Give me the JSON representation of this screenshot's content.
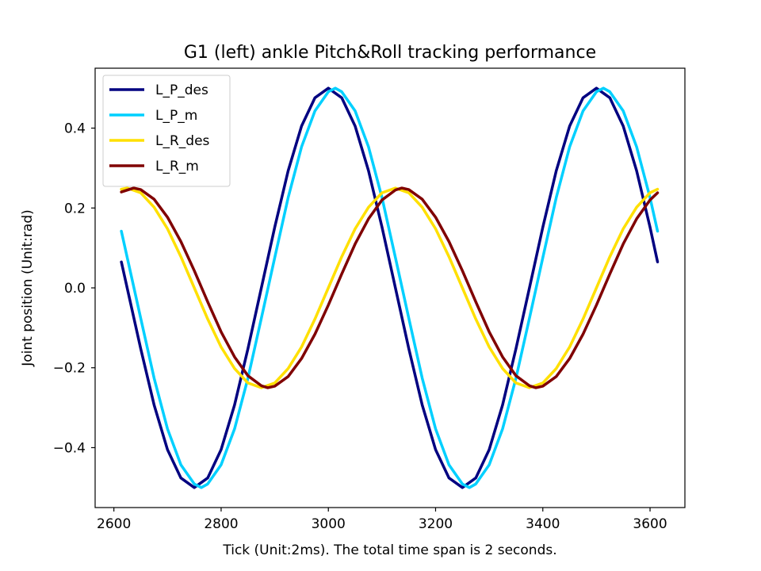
{
  "chart_data": {
    "type": "line",
    "title": "G1 (left) ankle Pitch&Roll tracking performance",
    "xlabel": "Tick (Unit:2ms). The total time span is 2 seconds.",
    "ylabel": "Joint position (Unit:rad)",
    "xlim": [
      2565,
      3665
    ],
    "ylim": [
      -0.55,
      0.55
    ],
    "xticks": [
      2600,
      2800,
      3000,
      3200,
      3400,
      3600
    ],
    "yticks": [
      0.4,
      0.2,
      0.0,
      -0.2,
      -0.4
    ],
    "xtick_labels": [
      "2600",
      "2800",
      "3000",
      "3200",
      "3400",
      "3600"
    ],
    "ytick_labels": [
      "0.4",
      "0.2",
      "0.0",
      "−0.2",
      "−0.4"
    ],
    "grid": false,
    "legend_position": "top-left",
    "series": [
      {
        "name": "L_P_des",
        "color": "#000080",
        "x": [
          2614,
          2650,
          2675,
          2700,
          2725,
          2750,
          2775,
          2800,
          2825,
          2850,
          2875,
          2900,
          2925,
          2950,
          2975,
          3000,
          3025,
          3050,
          3075,
          3100,
          3125,
          3150,
          3175,
          3200,
          3225,
          3250,
          3275,
          3300,
          3325,
          3350,
          3375,
          3400,
          3425,
          3450,
          3475,
          3500,
          3525,
          3550,
          3575,
          3600,
          3614
        ],
        "y": [
          0.065,
          -0.152,
          -0.293,
          -0.405,
          -0.476,
          -0.5,
          -0.476,
          -0.405,
          -0.293,
          -0.152,
          0.0,
          0.152,
          0.293,
          0.405,
          0.476,
          0.5,
          0.476,
          0.405,
          0.293,
          0.152,
          0.0,
          -0.152,
          -0.293,
          -0.405,
          -0.476,
          -0.5,
          -0.476,
          -0.405,
          -0.293,
          -0.152,
          0.0,
          0.152,
          0.293,
          0.405,
          0.476,
          0.5,
          0.476,
          0.405,
          0.293,
          0.152,
          0.065
        ]
      },
      {
        "name": "L_P_m",
        "color": "#00d0ff",
        "x": [
          2614,
          2650,
          2675,
          2700,
          2725,
          2750,
          2763,
          2775,
          2800,
          2825,
          2850,
          2875,
          2900,
          2925,
          2950,
          2975,
          3000,
          3013,
          3025,
          3050,
          3075,
          3100,
          3125,
          3150,
          3175,
          3200,
          3225,
          3250,
          3263,
          3275,
          3300,
          3325,
          3350,
          3375,
          3400,
          3425,
          3450,
          3475,
          3500,
          3513,
          3525,
          3550,
          3575,
          3600,
          3614
        ],
        "y": [
          0.142,
          -0.076,
          -0.226,
          -0.353,
          -0.443,
          -0.491,
          -0.5,
          -0.491,
          -0.443,
          -0.353,
          -0.226,
          -0.076,
          0.076,
          0.226,
          0.353,
          0.443,
          0.491,
          0.5,
          0.491,
          0.443,
          0.353,
          0.226,
          0.076,
          -0.076,
          -0.226,
          -0.353,
          -0.443,
          -0.491,
          -0.5,
          -0.491,
          -0.443,
          -0.353,
          -0.226,
          -0.076,
          0.076,
          0.226,
          0.353,
          0.443,
          0.491,
          0.5,
          0.491,
          0.443,
          0.353,
          0.226,
          0.142
        ]
      },
      {
        "name": "L_R_des",
        "color": "#ffe000",
        "x": [
          2614,
          2625,
          2650,
          2675,
          2700,
          2725,
          2750,
          2775,
          2800,
          2825,
          2850,
          2875,
          2900,
          2925,
          2950,
          2975,
          3000,
          3025,
          3050,
          3075,
          3100,
          3125,
          3150,
          3175,
          3200,
          3225,
          3250,
          3275,
          3300,
          3325,
          3350,
          3375,
          3400,
          3425,
          3450,
          3475,
          3500,
          3525,
          3550,
          3575,
          3600,
          3614
        ],
        "y": [
          0.247,
          0.25,
          0.238,
          0.202,
          0.148,
          0.078,
          0.0,
          -0.078,
          -0.148,
          -0.202,
          -0.238,
          -0.25,
          -0.238,
          -0.202,
          -0.148,
          -0.078,
          0.0,
          0.078,
          0.148,
          0.202,
          0.238,
          0.25,
          0.238,
          0.202,
          0.148,
          0.078,
          0.0,
          -0.078,
          -0.148,
          -0.202,
          -0.238,
          -0.25,
          -0.238,
          -0.202,
          -0.148,
          -0.078,
          0.0,
          0.078,
          0.148,
          0.202,
          0.238,
          0.247
        ]
      },
      {
        "name": "L_R_m",
        "color": "#800000",
        "x": [
          2614,
          2637,
          2650,
          2675,
          2700,
          2725,
          2750,
          2775,
          2800,
          2825,
          2850,
          2875,
          2887,
          2900,
          2925,
          2950,
          2975,
          3000,
          3025,
          3050,
          3075,
          3100,
          3125,
          3137,
          3150,
          3175,
          3200,
          3225,
          3250,
          3275,
          3300,
          3325,
          3350,
          3375,
          3387,
          3400,
          3425,
          3450,
          3475,
          3500,
          3525,
          3550,
          3575,
          3600,
          3614
        ],
        "y": [
          0.24,
          0.25,
          0.246,
          0.222,
          0.177,
          0.116,
          0.043,
          -0.035,
          -0.11,
          -0.173,
          -0.22,
          -0.245,
          -0.25,
          -0.246,
          -0.222,
          -0.177,
          -0.116,
          -0.043,
          0.035,
          0.11,
          0.173,
          0.22,
          0.245,
          0.25,
          0.246,
          0.222,
          0.177,
          0.116,
          0.043,
          -0.035,
          -0.11,
          -0.173,
          -0.22,
          -0.245,
          -0.25,
          -0.246,
          -0.222,
          -0.177,
          -0.116,
          -0.043,
          0.035,
          0.11,
          0.173,
          0.22,
          0.238
        ]
      }
    ]
  }
}
